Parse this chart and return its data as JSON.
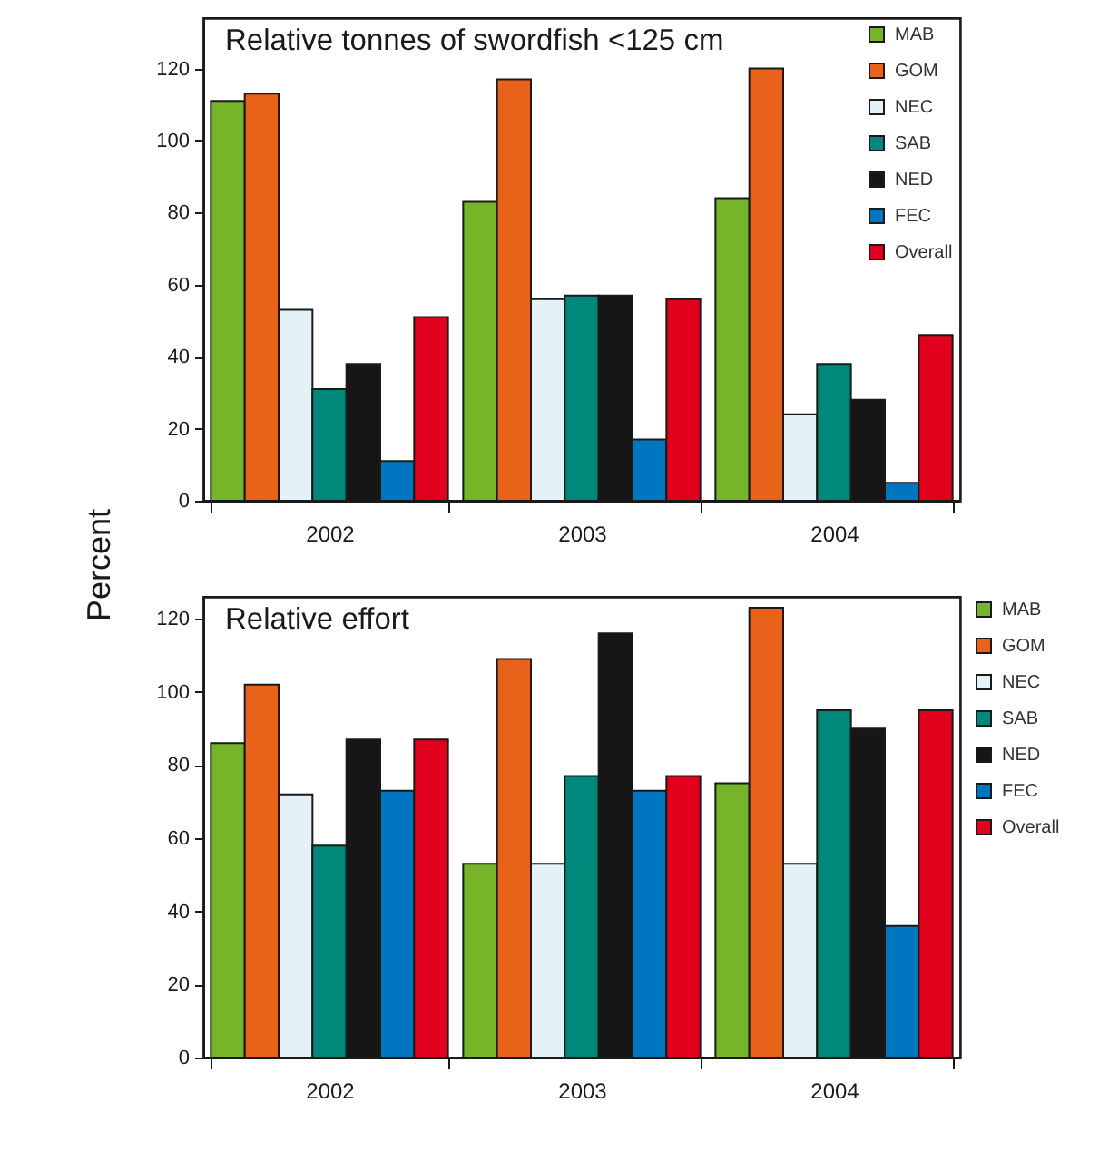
{
  "chart_data": [
    {
      "type": "bar",
      "title": "Relative tonnes of swordfish <125 cm",
      "ylabel": "Percent",
      "categories": [
        "2002",
        "2003",
        "2004"
      ],
      "series": [
        {
          "name": "MAB",
          "color": "#76b52a",
          "values": [
            111,
            83,
            84
          ]
        },
        {
          "name": "GOM",
          "color": "#e8621a",
          "values": [
            113,
            117,
            120
          ]
        },
        {
          "name": "NEC",
          "color": "#e4f1f7",
          "values": [
            53,
            56,
            24
          ]
        },
        {
          "name": "SAB",
          "color": "#00897a",
          "values": [
            31,
            57,
            38
          ]
        },
        {
          "name": "NED",
          "color": "#161616",
          "values": [
            38,
            57,
            28
          ]
        },
        {
          "name": "FEC",
          "color": "#0076c0",
          "values": [
            11,
            17,
            5
          ]
        },
        {
          "name": "Overall",
          "color": "#e0001b",
          "values": [
            51,
            56,
            46
          ]
        }
      ],
      "ylim": [
        0,
        134
      ],
      "yticks": [
        0,
        20,
        40,
        60,
        80,
        100,
        120
      ],
      "legend": "top right"
    },
    {
      "type": "bar",
      "title": "Relative effort",
      "categories": [
        "2002",
        "2003",
        "2004"
      ],
      "series": [
        {
          "name": "MAB",
          "color": "#76b52a",
          "values": [
            86,
            53,
            75
          ]
        },
        {
          "name": "GOM",
          "color": "#e8621a",
          "values": [
            102,
            109,
            123
          ]
        },
        {
          "name": "NEC",
          "color": "#e4f1f7",
          "values": [
            72,
            53,
            53
          ]
        },
        {
          "name": "SAB",
          "color": "#00897a",
          "values": [
            58,
            77,
            95
          ]
        },
        {
          "name": "NED",
          "color": "#161616",
          "values": [
            87,
            116,
            90
          ]
        },
        {
          "name": "FEC",
          "color": "#0076c0",
          "values": [
            73,
            73,
            36
          ]
        },
        {
          "name": "Overall",
          "color": "#e0001b",
          "values": [
            87,
            77,
            95
          ]
        }
      ],
      "ylim": [
        0,
        126
      ],
      "yticks": [
        0,
        20,
        40,
        60,
        80,
        100,
        120
      ],
      "legend": "right"
    }
  ]
}
